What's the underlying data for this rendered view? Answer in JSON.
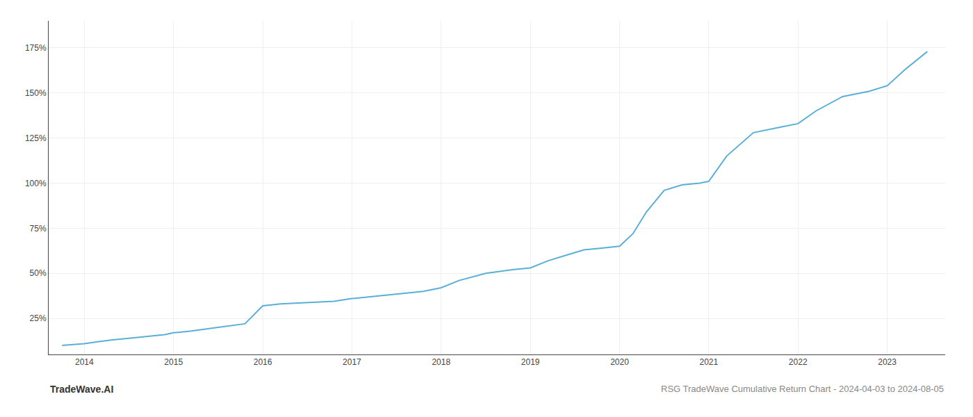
{
  "chart_data": {
    "type": "line",
    "title": "RSG TradeWave Cumulative Return Chart - 2024-04-03 to 2024-08-05",
    "annotations": [
      "TradeWave.AI"
    ],
    "x": [
      2013.75,
      2014.0,
      2014.15,
      2014.3,
      2014.5,
      2014.7,
      2014.9,
      2015.0,
      2015.2,
      2015.5,
      2015.8,
      2016.0,
      2016.2,
      2016.4,
      2016.6,
      2016.8,
      2017.0,
      2017.2,
      2017.4,
      2017.6,
      2017.8,
      2018.0,
      2018.2,
      2018.5,
      2018.8,
      2019.0,
      2019.2,
      2019.4,
      2019.6,
      2019.8,
      2020.0,
      2020.15,
      2020.3,
      2020.5,
      2020.7,
      2020.9,
      2021.0,
      2021.2,
      2021.5,
      2021.8,
      2022.0,
      2022.2,
      2022.5,
      2022.8,
      2023.0,
      2023.2,
      2023.45
    ],
    "values": [
      10,
      11,
      12,
      13,
      14,
      15,
      16,
      17,
      18,
      20,
      22,
      32,
      33,
      33.5,
      34,
      34.5,
      36,
      37,
      38,
      39,
      40,
      42,
      46,
      50,
      52,
      53,
      57,
      60,
      63,
      64,
      65,
      72,
      84,
      96,
      99,
      100,
      101,
      115,
      128,
      131,
      133,
      140,
      148,
      151,
      154,
      163,
      173
    ],
    "color": "#5aafd6",
    "xlim": [
      2013.6,
      2023.65
    ],
    "xticks": [
      2014,
      2015,
      2016,
      2017,
      2018,
      2019,
      2020,
      2021,
      2022,
      2023
    ],
    "ylim": [
      5,
      190
    ],
    "yticks": [
      {
        "value": 25,
        "label": "25%"
      },
      {
        "value": 50,
        "label": "50%"
      },
      {
        "value": 75,
        "label": "75%"
      },
      {
        "value": 100,
        "label": "100%"
      },
      {
        "value": 125,
        "label": "125%"
      },
      {
        "value": 150,
        "label": "150%"
      },
      {
        "value": 175,
        "label": "175%"
      }
    ],
    "grid": true
  }
}
